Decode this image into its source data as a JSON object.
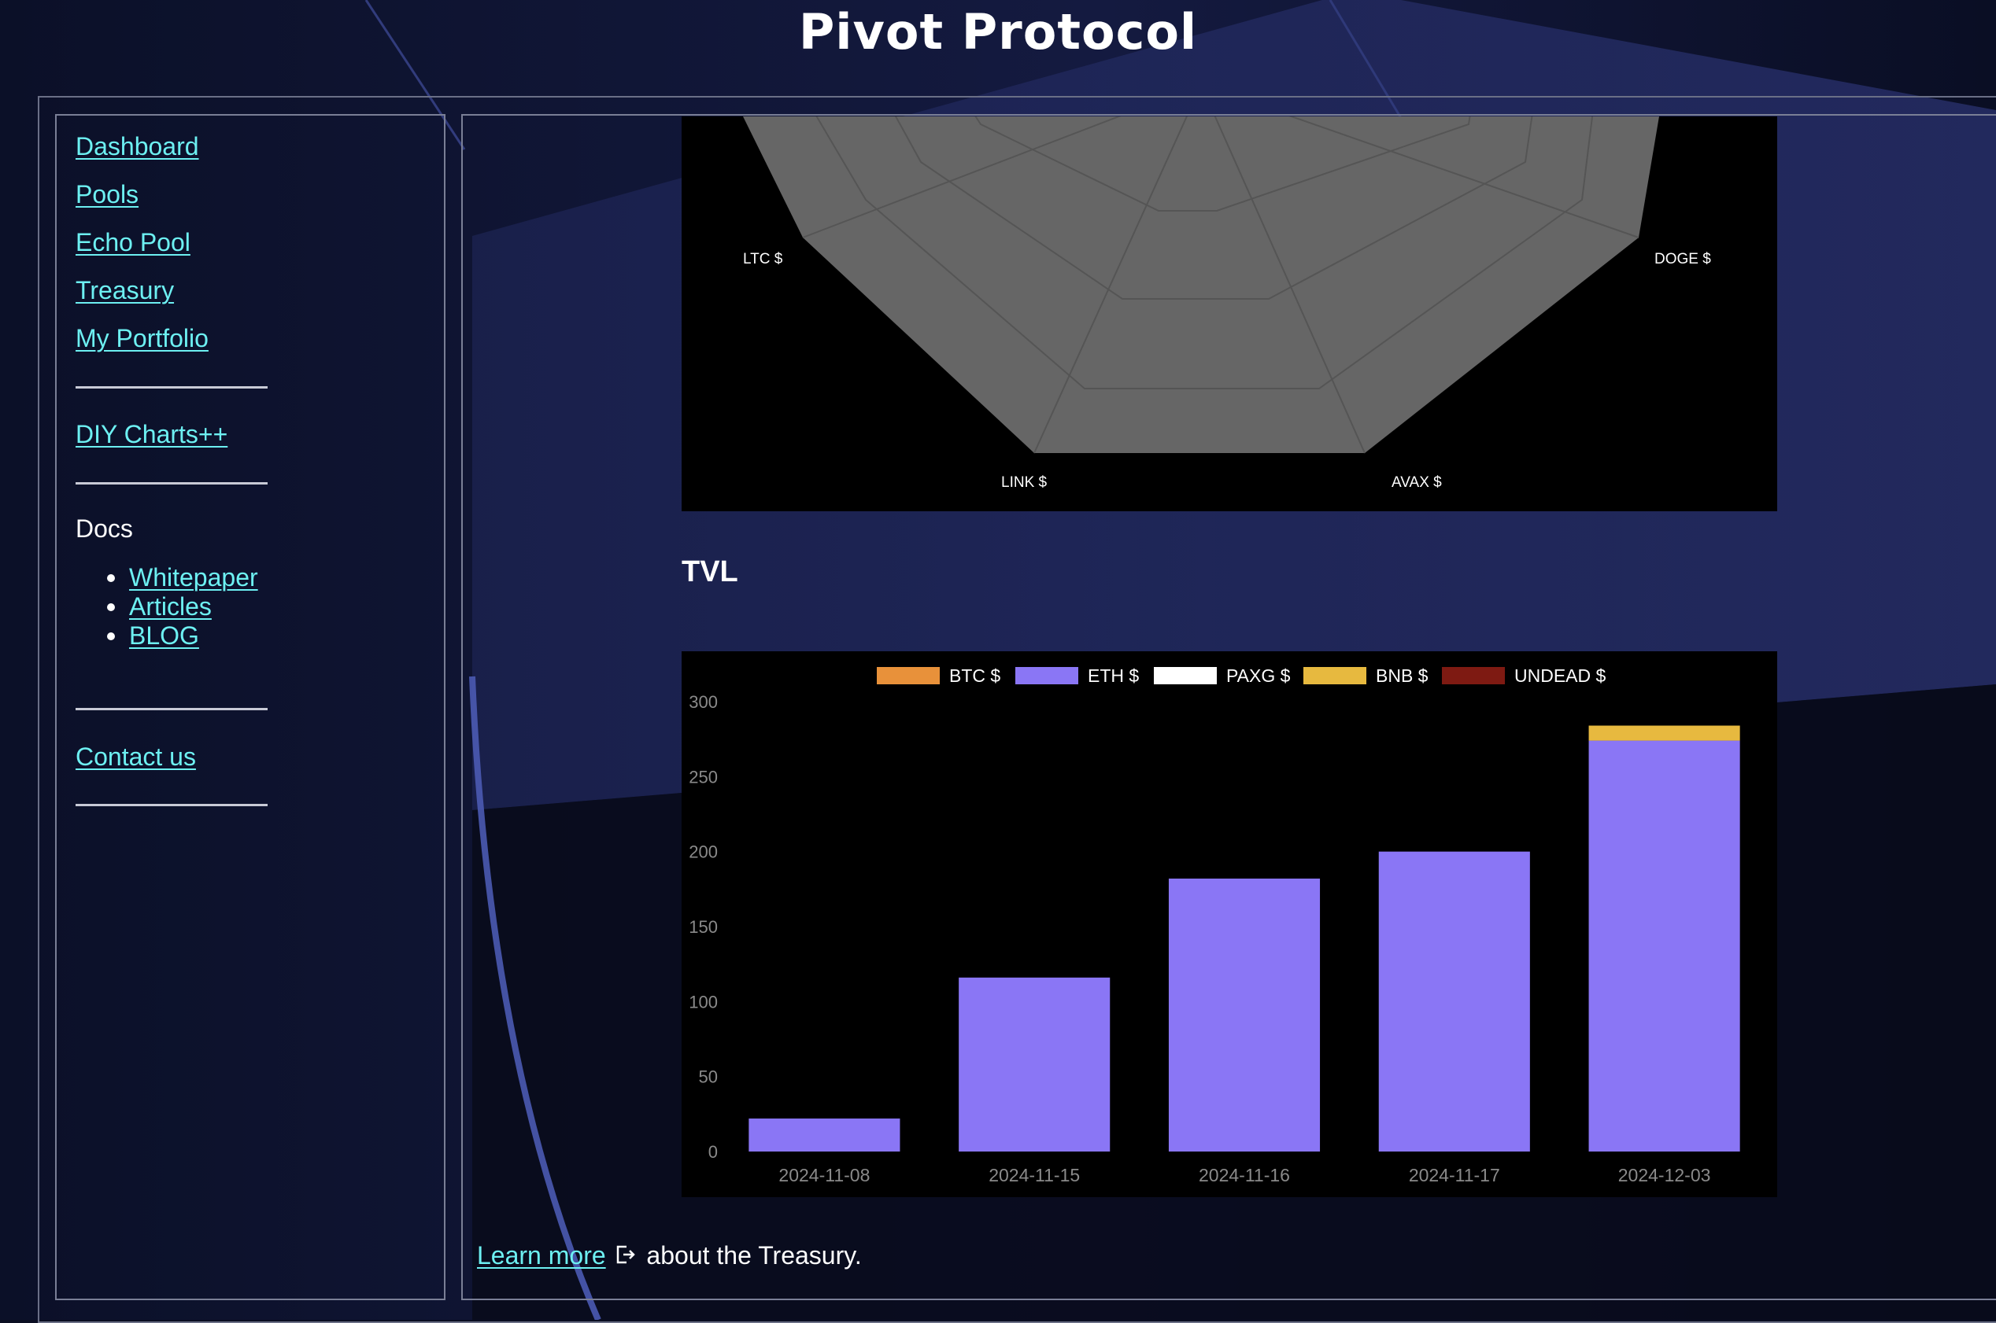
{
  "header": {
    "title": "Pivot Protocol"
  },
  "sidebar": {
    "nav": [
      {
        "label": "Dashboard"
      },
      {
        "label": "Pools"
      },
      {
        "label": "Echo Pool"
      },
      {
        "label": "Treasury"
      },
      {
        "label": "My Portfolio"
      }
    ],
    "diy_label": "DIY Charts++",
    "docs_label": "Docs",
    "docs_links": [
      {
        "label": "Whitepaper"
      },
      {
        "label": "Articles"
      },
      {
        "label": "BLOG"
      }
    ],
    "contact_label": "Contact us"
  },
  "radar": {
    "visible_labels": [
      "LTC $",
      "DOGE $",
      "LINK $",
      "AVAX $"
    ],
    "fill_color": "#666666"
  },
  "tvl": {
    "heading": "TVL"
  },
  "chart_data": {
    "type": "bar",
    "stacked": true,
    "title": "",
    "xlabel": "",
    "ylabel": "",
    "ylim": [
      0,
      300
    ],
    "yticks": [
      0,
      50,
      100,
      150,
      200,
      250,
      300
    ],
    "categories": [
      "2024-11-08",
      "2024-11-15",
      "2024-11-16",
      "2024-11-17",
      "2024-12-03"
    ],
    "series": [
      {
        "name": "BTC $",
        "color": "#e8913a",
        "values": [
          0,
          0,
          0,
          0,
          0
        ]
      },
      {
        "name": "ETH $",
        "color": "#8a76f5",
        "values": [
          22,
          116,
          182,
          200,
          274
        ]
      },
      {
        "name": "PAXG $",
        "color": "#ffffff",
        "values": [
          0,
          0,
          0,
          0,
          0
        ]
      },
      {
        "name": "BNB $",
        "color": "#e7b93f",
        "values": [
          0,
          0,
          0,
          0,
          10
        ]
      },
      {
        "name": "UNDEAD $",
        "color": "#7e1a12",
        "values": [
          0,
          0,
          0,
          0,
          0
        ]
      }
    ],
    "grid": false,
    "legend_position": "top"
  },
  "footer": {
    "learn_more": "Learn more",
    "about_text": "about the Treasury."
  }
}
